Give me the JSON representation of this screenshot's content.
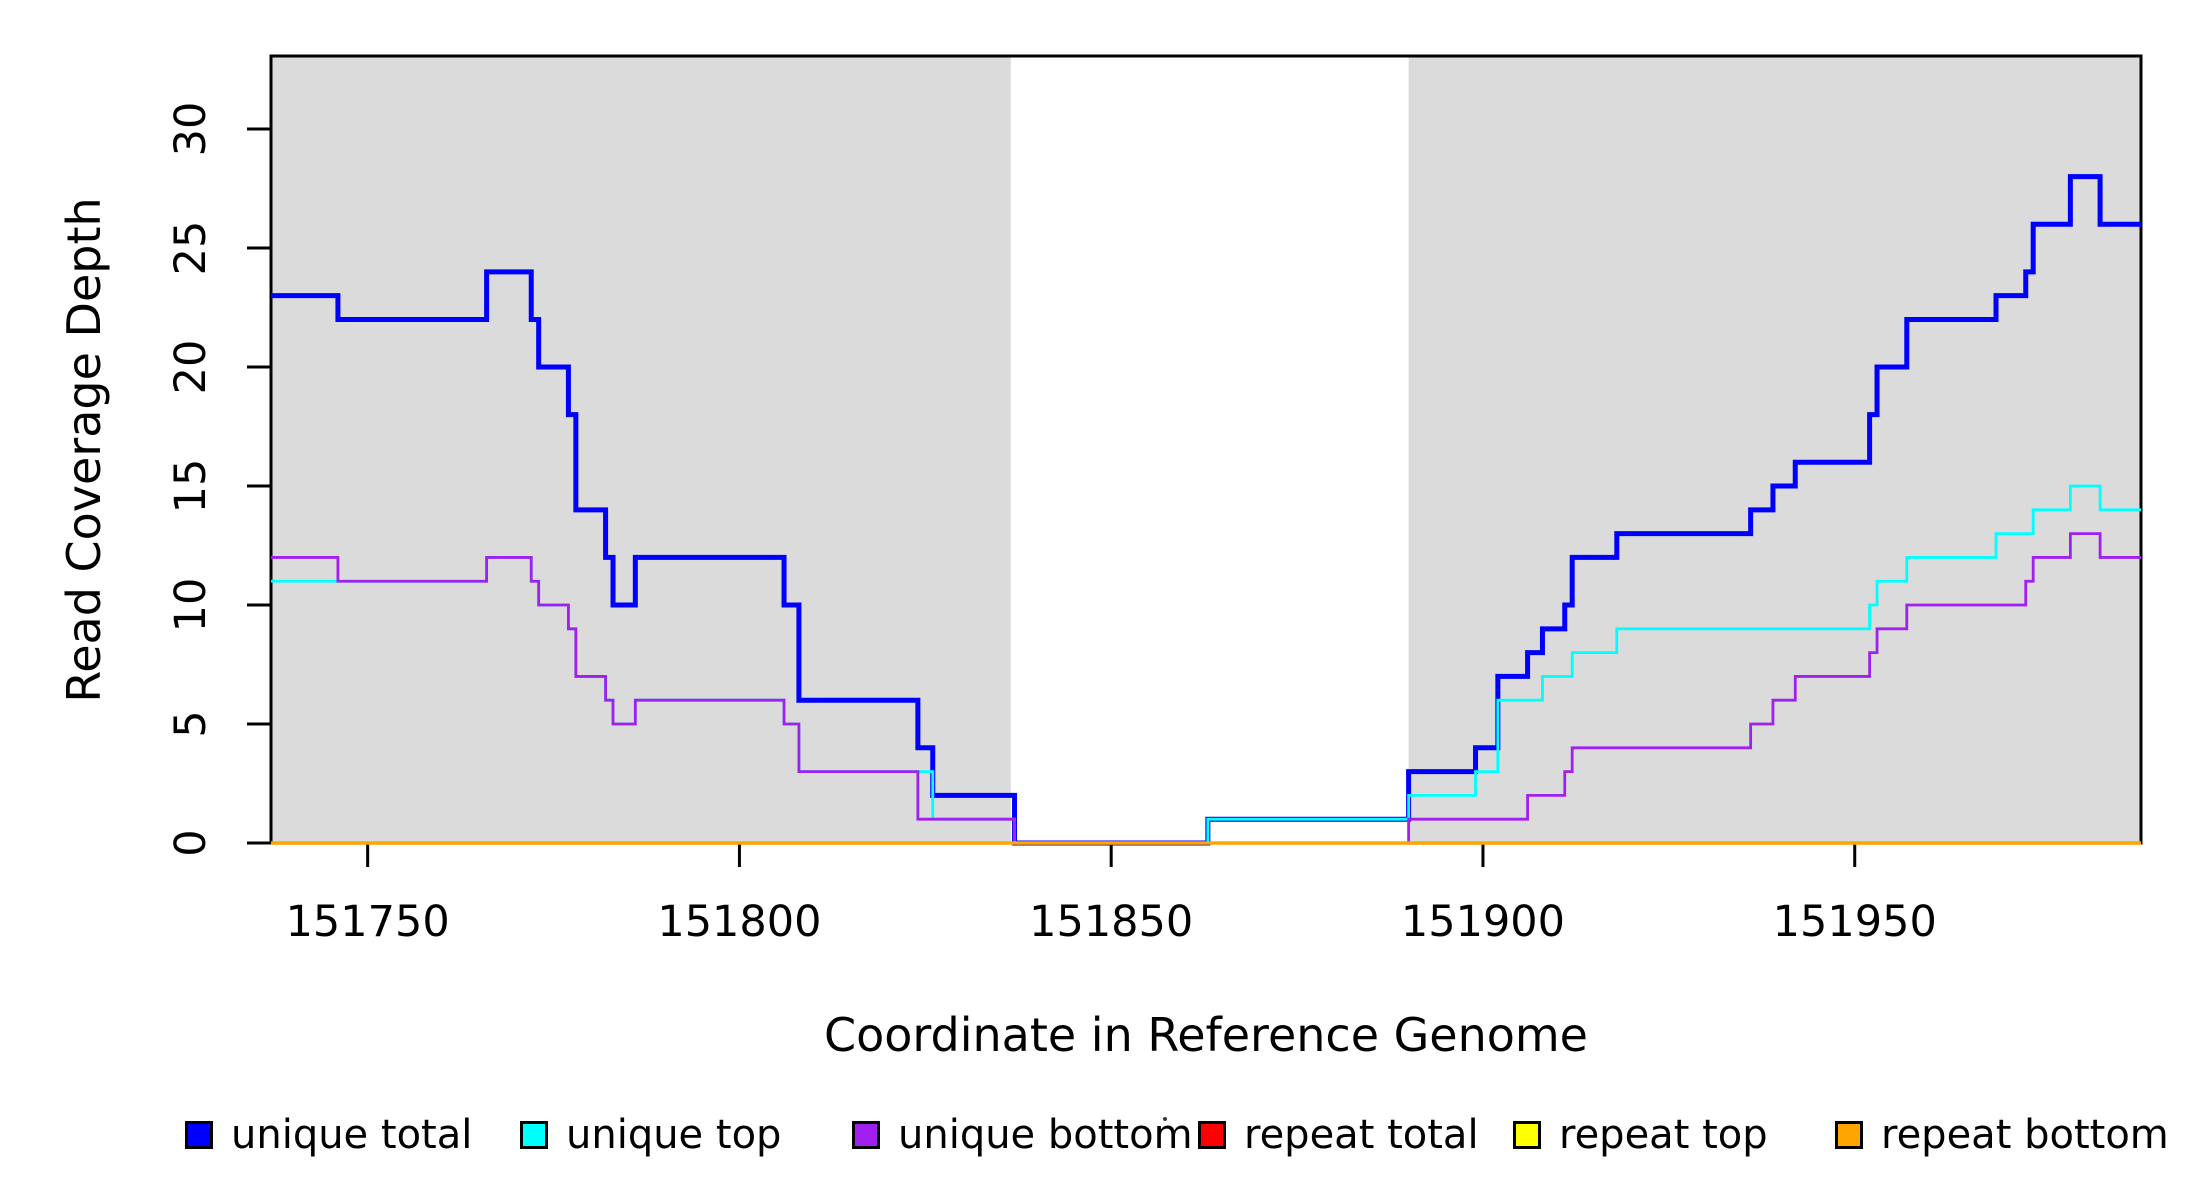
{
  "chart_data": {
    "type": "line",
    "subtype": "step",
    "title": "",
    "xlabel": "Coordinate in Reference Genome",
    "ylabel": "Read Coverage Depth",
    "xlim": [
      151737,
      151988.5
    ],
    "ylim": [
      0,
      33.07
    ],
    "x_ticks": [
      151750,
      151800,
      151850,
      151900,
      151950
    ],
    "y_ticks": [
      0,
      5,
      10,
      15,
      20,
      25,
      30
    ],
    "grid": "off",
    "shade_color": "#dbdbdb",
    "shaded_regions": [
      {
        "from": 151737,
        "to": 151836.5
      },
      {
        "from": 151890,
        "to": 151988.5
      }
    ],
    "legend_position": "bottom",
    "series": [
      {
        "name": "unique total",
        "color": "#0000ff",
        "line_width": 5,
        "points": [
          [
            151737,
            23
          ],
          [
            151746,
            22
          ],
          [
            151766,
            24
          ],
          [
            151772,
            22
          ],
          [
            151773,
            20
          ],
          [
            151777,
            18
          ],
          [
            151778,
            14
          ],
          [
            151782,
            12
          ],
          [
            151783,
            10
          ],
          [
            151786,
            12
          ],
          [
            151806,
            10
          ],
          [
            151808,
            6
          ],
          [
            151824,
            4
          ],
          [
            151826,
            2
          ],
          [
            151837,
            0
          ],
          [
            151863,
            1
          ],
          [
            151890,
            3
          ],
          [
            151899,
            4
          ],
          [
            151902,
            7
          ],
          [
            151906,
            8
          ],
          [
            151908,
            9
          ],
          [
            151911,
            10
          ],
          [
            151912,
            12
          ],
          [
            151918,
            13
          ],
          [
            151936,
            14
          ],
          [
            151939,
            15
          ],
          [
            151942,
            16
          ],
          [
            151952,
            18
          ],
          [
            151953,
            20
          ],
          [
            151957,
            22
          ],
          [
            151969,
            23
          ],
          [
            151973,
            24
          ],
          [
            151974,
            26
          ],
          [
            151979,
            28
          ],
          [
            151983,
            26
          ]
        ]
      },
      {
        "name": "unique top",
        "color": "#00ffff",
        "line_width": 2.8,
        "points": [
          [
            151737,
            11
          ],
          [
            151766,
            12
          ],
          [
            151772,
            11
          ],
          [
            151773,
            10
          ],
          [
            151777,
            9
          ],
          [
            151778,
            7
          ],
          [
            151782,
            6
          ],
          [
            151783,
            5
          ],
          [
            151786,
            6
          ],
          [
            151806,
            5
          ],
          [
            151808,
            3
          ],
          [
            151826,
            1
          ],
          [
            151837,
            0
          ],
          [
            151863,
            1
          ],
          [
            151890,
            2
          ],
          [
            151899,
            3
          ],
          [
            151902,
            6
          ],
          [
            151908,
            7
          ],
          [
            151912,
            8
          ],
          [
            151918,
            9
          ],
          [
            151952,
            10
          ],
          [
            151953,
            11
          ],
          [
            151957,
            12
          ],
          [
            151969,
            13
          ],
          [
            151974,
            14
          ],
          [
            151979,
            15
          ],
          [
            151983,
            14
          ]
        ]
      },
      {
        "name": "unique bottom",
        "color": "#a020f0",
        "line_width": 2.8,
        "points": [
          [
            151737,
            12
          ],
          [
            151746,
            11
          ],
          [
            151766,
            12
          ],
          [
            151772,
            11
          ],
          [
            151773,
            10
          ],
          [
            151777,
            9
          ],
          [
            151778,
            7
          ],
          [
            151782,
            6
          ],
          [
            151783,
            5
          ],
          [
            151786,
            6
          ],
          [
            151806,
            5
          ],
          [
            151808,
            3
          ],
          [
            151824,
            1
          ],
          [
            151837,
            0
          ],
          [
            151890,
            1
          ],
          [
            151906,
            2
          ],
          [
            151911,
            3
          ],
          [
            151912,
            4
          ],
          [
            151936,
            5
          ],
          [
            151939,
            6
          ],
          [
            151942,
            7
          ],
          [
            151952,
            8
          ],
          [
            151953,
            9
          ],
          [
            151957,
            10
          ],
          [
            151973,
            11
          ],
          [
            151974,
            12
          ],
          [
            151979,
            13
          ],
          [
            151983,
            12
          ]
        ]
      },
      {
        "name": "repeat total",
        "color": "#ff0000",
        "line_width": 2.8,
        "points": [
          [
            151737,
            0
          ]
        ]
      },
      {
        "name": "repeat top",
        "color": "#ffff00",
        "line_width": 2.8,
        "points": [
          [
            151737,
            0
          ]
        ]
      },
      {
        "name": "repeat bottom",
        "color": "#ffa500",
        "line_width": 3.5,
        "points": [
          [
            151737,
            0
          ]
        ]
      }
    ]
  }
}
